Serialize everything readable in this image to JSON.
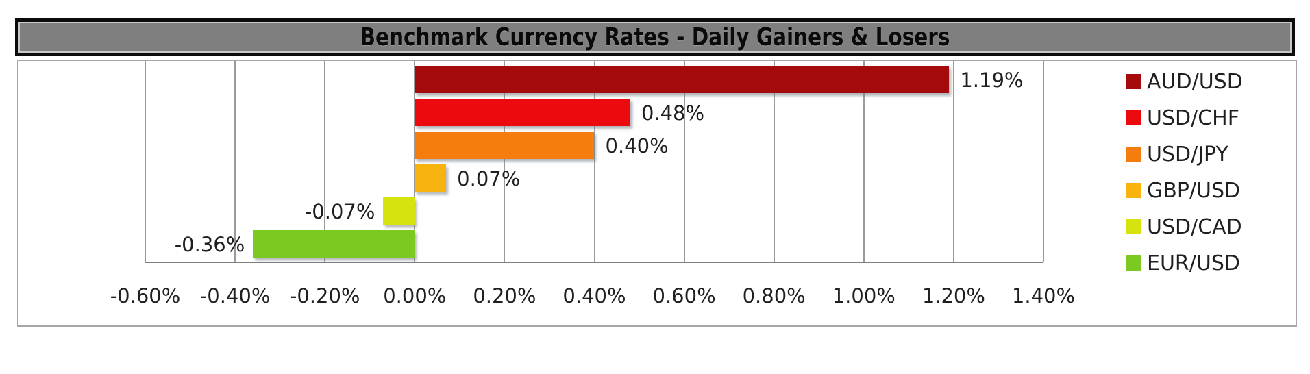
{
  "chart_data": {
    "type": "bar",
    "orientation": "horizontal",
    "title": "Benchmark Currency Rates - Daily Gainers & Losers",
    "categories": [
      "AUD/USD",
      "USD/CHF",
      "USD/JPY",
      "GBP/USD",
      "USD/CAD",
      "EUR/USD"
    ],
    "values": [
      1.19,
      0.48,
      0.4,
      0.07,
      -0.07,
      -0.36
    ],
    "value_labels": [
      "1.19%",
      "0.48%",
      "0.40%",
      "0.07%",
      "-0.07%",
      "-0.36%"
    ],
    "bar_colors": [
      "#a50a0c",
      "#ec0a0e",
      "#f57d0e",
      "#f8b30f",
      "#d6e30f",
      "#7cc922"
    ],
    "xlim": [
      -0.6,
      1.4
    ],
    "x_ticks": [
      {
        "value": -0.6,
        "label": "-0.60%"
      },
      {
        "value": -0.4,
        "label": "-0.40%"
      },
      {
        "value": -0.2,
        "label": "-0.20%"
      },
      {
        "value": 0.0,
        "label": "0.00%"
      },
      {
        "value": 0.2,
        "label": "0.20%"
      },
      {
        "value": 0.4,
        "label": "0.40%"
      },
      {
        "value": 0.6,
        "label": "0.60%"
      },
      {
        "value": 0.8,
        "label": "0.80%"
      },
      {
        "value": 1.0,
        "label": "1.00%"
      },
      {
        "value": 1.2,
        "label": "1.20%"
      },
      {
        "value": 1.4,
        "label": "1.40%"
      }
    ],
    "grid": true,
    "legend_position": "right",
    "legend": [
      "AUD/USD",
      "USD/CHF",
      "USD/JPY",
      "GBP/USD",
      "USD/CAD",
      "EUR/USD"
    ],
    "styles": {
      "title_bar_fill": "#7f7f7f",
      "title_bar_border": "#0c0c0c",
      "frame_border": "#a6a6a6",
      "gridline_color": "#9b9b9b",
      "axis_line_color": "#7f7f7f",
      "label_color": "#1f1f1f"
    }
  }
}
